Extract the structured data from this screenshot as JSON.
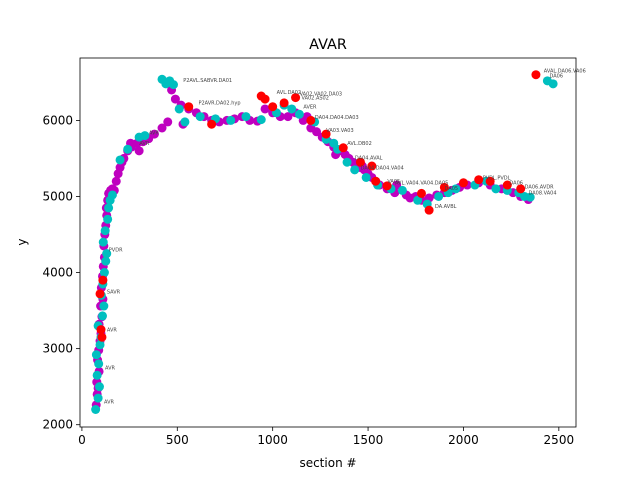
{
  "chart_data": {
    "type": "scatter",
    "title": "AVAR",
    "xlabel": "section #",
    "ylabel": "y",
    "xlim": [
      -10,
      2590
    ],
    "ylim": [
      1970,
      6820
    ],
    "xticks": [
      0,
      500,
      1000,
      1500,
      2000,
      2500
    ],
    "yticks": [
      2000,
      3000,
      4000,
      5000,
      6000
    ],
    "grid": false,
    "legend": "none",
    "series": [
      {
        "color": "#bf00bf",
        "points": [
          [
            75,
            2260
          ],
          [
            80,
            2400
          ],
          [
            85,
            2480
          ],
          [
            78,
            2560
          ],
          [
            90,
            2700
          ],
          [
            82,
            2850
          ],
          [
            88,
            2980
          ],
          [
            95,
            3100
          ],
          [
            100,
            3200
          ],
          [
            90,
            3320
          ],
          [
            105,
            3420
          ],
          [
            98,
            3560
          ],
          [
            110,
            3650
          ],
          [
            102,
            3800
          ],
          [
            108,
            3950
          ],
          [
            112,
            4080
          ],
          [
            118,
            4200
          ],
          [
            115,
            4350
          ],
          [
            120,
            4500
          ],
          [
            125,
            4620
          ],
          [
            130,
            4750
          ],
          [
            128,
            4850
          ],
          [
            135,
            4950
          ],
          [
            140,
            5040
          ],
          [
            150,
            5080
          ],
          [
            160,
            5100
          ],
          [
            170,
            5080
          ],
          [
            180,
            5200
          ],
          [
            190,
            5300
          ],
          [
            200,
            5380
          ],
          [
            210,
            5450
          ],
          [
            220,
            5500
          ],
          [
            240,
            5600
          ],
          [
            260,
            5650
          ],
          [
            290,
            5700
          ],
          [
            320,
            5720
          ],
          [
            350,
            5760
          ],
          [
            380,
            5820
          ],
          [
            420,
            5900
          ],
          [
            450,
            5980
          ],
          [
            470,
            6400
          ],
          [
            490,
            6280
          ],
          [
            520,
            6200
          ],
          [
            560,
            6150
          ],
          [
            600,
            6100
          ],
          [
            640,
            6050
          ],
          [
            680,
            6000
          ],
          [
            720,
            5980
          ],
          [
            760,
            6000
          ],
          [
            800,
            6020
          ],
          [
            840,
            6050
          ],
          [
            880,
            6000
          ],
          [
            920,
            5990
          ],
          [
            960,
            6150
          ],
          [
            1000,
            6100
          ],
          [
            1040,
            6050
          ],
          [
            1080,
            6050
          ],
          [
            1120,
            6100
          ],
          [
            1160,
            6000
          ],
          [
            1200,
            5900
          ],
          [
            1230,
            5850
          ],
          [
            1260,
            5780
          ],
          [
            1290,
            5720
          ],
          [
            1320,
            5650
          ],
          [
            1350,
            5600
          ],
          [
            1380,
            5550
          ],
          [
            1400,
            5500
          ],
          [
            1420,
            5450
          ],
          [
            1440,
            5400
          ],
          [
            1460,
            5380
          ],
          [
            1480,
            5350
          ],
          [
            1500,
            5300
          ],
          [
            1520,
            5250
          ],
          [
            1540,
            5200
          ],
          [
            1560,
            5150
          ],
          [
            1600,
            5100
          ],
          [
            1640,
            5050
          ],
          [
            1700,
            5020
          ],
          [
            1750,
            5000
          ],
          [
            1780,
            4950
          ],
          [
            1820,
            4980
          ],
          [
            1860,
            5020
          ],
          [
            1900,
            5050
          ],
          [
            1940,
            5080
          ],
          [
            1980,
            5120
          ],
          [
            2020,
            5150
          ],
          [
            2080,
            5180
          ],
          [
            2140,
            5150
          ],
          [
            2200,
            5100
          ],
          [
            2260,
            5050
          ],
          [
            2300,
            5000
          ],
          [
            2340,
            4960
          ],
          [
            530,
            5950
          ],
          [
            300,
            5600
          ],
          [
            255,
            5700
          ],
          [
            1180,
            6050
          ],
          [
            1330,
            5550
          ],
          [
            1470,
            5400
          ],
          [
            1650,
            5150
          ],
          [
            1720,
            4980
          ]
        ]
      },
      {
        "color": "#00bfbf",
        "points": [
          [
            72,
            2200
          ],
          [
            85,
            2350
          ],
          [
            92,
            2500
          ],
          [
            80,
            2650
          ],
          [
            88,
            2800
          ],
          [
            76,
            2920
          ],
          [
            95,
            3050
          ],
          [
            100,
            3150
          ],
          [
            85,
            3300
          ],
          [
            108,
            3430
          ],
          [
            115,
            3560
          ],
          [
            102,
            3700
          ],
          [
            110,
            3850
          ],
          [
            118,
            4000
          ],
          [
            125,
            4150
          ],
          [
            130,
            4250
          ],
          [
            112,
            4400
          ],
          [
            122,
            4550
          ],
          [
            135,
            4700
          ],
          [
            140,
            4850
          ],
          [
            148,
            4950
          ],
          [
            160,
            5020
          ],
          [
            300,
            5780
          ],
          [
            330,
            5800
          ],
          [
            420,
            6540
          ],
          [
            440,
            6480
          ],
          [
            460,
            6520
          ],
          [
            480,
            6470
          ],
          [
            510,
            6150
          ],
          [
            540,
            5980
          ],
          [
            620,
            6050
          ],
          [
            700,
            6020
          ],
          [
            780,
            6000
          ],
          [
            860,
            6050
          ],
          [
            940,
            6010
          ],
          [
            1020,
            6100
          ],
          [
            1060,
            6200
          ],
          [
            1100,
            6150
          ],
          [
            1140,
            6080
          ],
          [
            1220,
            5980
          ],
          [
            1280,
            5750
          ],
          [
            1340,
            5620
          ],
          [
            1390,
            5450
          ],
          [
            1430,
            5350
          ],
          [
            1490,
            5250
          ],
          [
            1550,
            5150
          ],
          [
            1620,
            5100
          ],
          [
            1680,
            5080
          ],
          [
            1760,
            4950
          ],
          [
            1810,
            4900
          ],
          [
            1870,
            5000
          ],
          [
            1920,
            5050
          ],
          [
            1960,
            5100
          ],
          [
            2060,
            5150
          ],
          [
            2120,
            5200
          ],
          [
            2170,
            5100
          ],
          [
            2230,
            5080
          ],
          [
            2290,
            5050
          ],
          [
            2320,
            5000
          ],
          [
            2350,
            4990
          ],
          [
            2440,
            6520
          ],
          [
            2470,
            6480
          ],
          [
            200,
            5480
          ],
          [
            240,
            5620
          ],
          [
            1320,
            5700
          ]
        ]
      },
      {
        "color": "#ff0000",
        "points": [
          [
            95,
            3720
          ],
          [
            100,
            3250
          ],
          [
            105,
            3150
          ],
          [
            110,
            3900
          ],
          [
            940,
            6320
          ],
          [
            960,
            6280
          ],
          [
            1000,
            6180
          ],
          [
            1060,
            6230
          ],
          [
            1120,
            6300
          ],
          [
            1200,
            6000
          ],
          [
            1280,
            5820
          ],
          [
            1370,
            5640
          ],
          [
            1460,
            5450
          ],
          [
            1520,
            5400
          ],
          [
            1540,
            5200
          ],
          [
            1600,
            5140
          ],
          [
            1780,
            5040
          ],
          [
            1820,
            4820
          ],
          [
            1900,
            5120
          ],
          [
            2000,
            5180
          ],
          [
            2080,
            5220
          ],
          [
            2140,
            5200
          ],
          [
            2230,
            5150
          ],
          [
            2300,
            5100
          ],
          [
            2380,
            6600
          ],
          [
            560,
            6180
          ],
          [
            680,
            5950
          ]
        ]
      }
    ],
    "point_labels": [
      {
        "x": 510,
        "y": 6480,
        "text": "P2AVL.SABVR.DA01"
      },
      {
        "x": 590,
        "y": 6180,
        "text": "P2AVR.DA02.hyp"
      },
      {
        "x": 1000,
        "y": 6320,
        "text": "AVL.DA02"
      },
      {
        "x": 1120,
        "y": 6300,
        "text": "VA02.VA02.DA03"
      },
      {
        "x": 1130,
        "y": 6250,
        "text": "VA02.AS02"
      },
      {
        "x": 1140,
        "y": 6130,
        "text": "AVER"
      },
      {
        "x": 1200,
        "y": 5990,
        "text": "DA04.DA04.DA03"
      },
      {
        "x": 1260,
        "y": 5820,
        "text": "VA03.VA03"
      },
      {
        "x": 1370,
        "y": 5650,
        "text": "AVL.DB02"
      },
      {
        "x": 1410,
        "y": 5460,
        "text": "DA04.AVAL"
      },
      {
        "x": 1440,
        "y": 5330,
        "text": "DA04.DA04.VA04"
      },
      {
        "x": 1580,
        "y": 5150,
        "text": "VA05"
      },
      {
        "x": 1620,
        "y": 5130,
        "text": "AVL.VA04.VA04.DA05"
      },
      {
        "x": 1880,
        "y": 5060,
        "text": "DA05"
      },
      {
        "x": 1830,
        "y": 4820,
        "text": "DA.AVBL"
      },
      {
        "x": 2080,
        "y": 5200,
        "text": "PVDL.PVDL"
      },
      {
        "x": 2220,
        "y": 5130,
        "text": "DA06"
      },
      {
        "x": 2300,
        "y": 5080,
        "text": "DA06.AVDR"
      },
      {
        "x": 2320,
        "y": 5000,
        "text": "DA08.VA04"
      },
      {
        "x": 2400,
        "y": 6600,
        "text": "AVAL.DA06.VA06"
      },
      {
        "x": 2430,
        "y": 6540,
        "text": "DA06"
      },
      {
        "x": 120,
        "y": 4250,
        "text": "PVDR"
      },
      {
        "x": 110,
        "y": 3700,
        "text": "SAVR"
      },
      {
        "x": 110,
        "y": 3200,
        "text": "AVR"
      },
      {
        "x": 100,
        "y": 2700,
        "text": "AVR"
      },
      {
        "x": 95,
        "y": 2250,
        "text": "AVR"
      },
      {
        "x": 280,
        "y": 5650,
        "text": "AVR"
      },
      {
        "x": 330,
        "y": 5790,
        "text": "AVR"
      }
    ]
  }
}
